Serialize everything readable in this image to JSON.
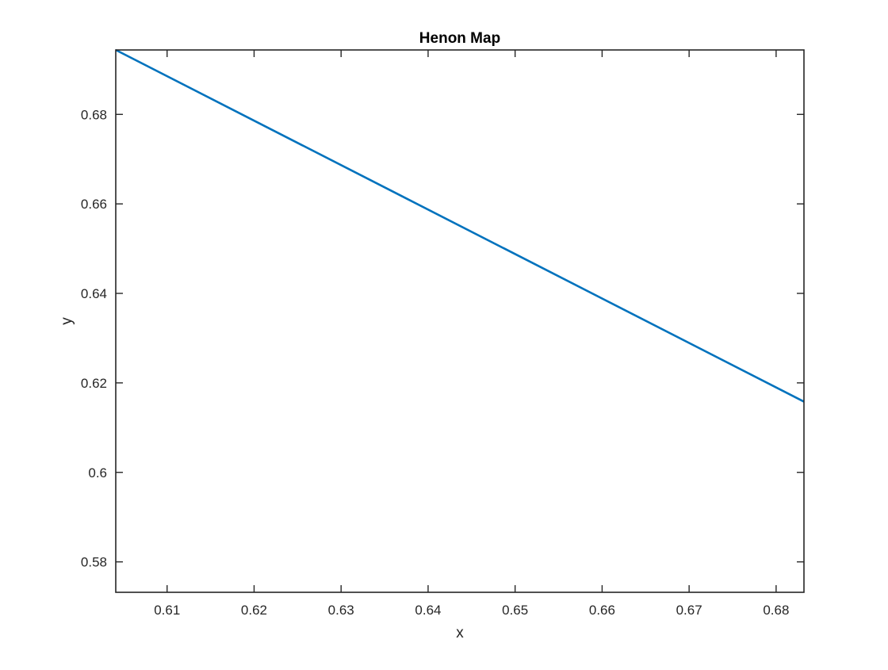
{
  "chart_data": {
    "type": "line",
    "title": "Henon Map",
    "xlabel": "x",
    "ylabel": "y",
    "xlim": [
      0.6041,
      0.6832
    ],
    "ylim": [
      0.5732,
      0.6944
    ],
    "xticks": [
      0.61,
      0.62,
      0.63,
      0.64,
      0.65,
      0.66,
      0.67,
      0.68
    ],
    "xtick_labels": [
      "0.61",
      "0.62",
      "0.63",
      "0.64",
      "0.65",
      "0.66",
      "0.67",
      "0.68"
    ],
    "yticks": [
      0.58,
      0.6,
      0.62,
      0.64,
      0.66,
      0.68
    ],
    "ytick_labels": [
      "0.58",
      "0.6",
      "0.62",
      "0.64",
      "0.66",
      "0.68"
    ],
    "grid": false,
    "box": true,
    "series": [
      {
        "color": "#0072BD",
        "x": [
          0.6041,
          0.6832
        ],
        "y": [
          0.6944,
          0.6158
        ]
      }
    ]
  }
}
